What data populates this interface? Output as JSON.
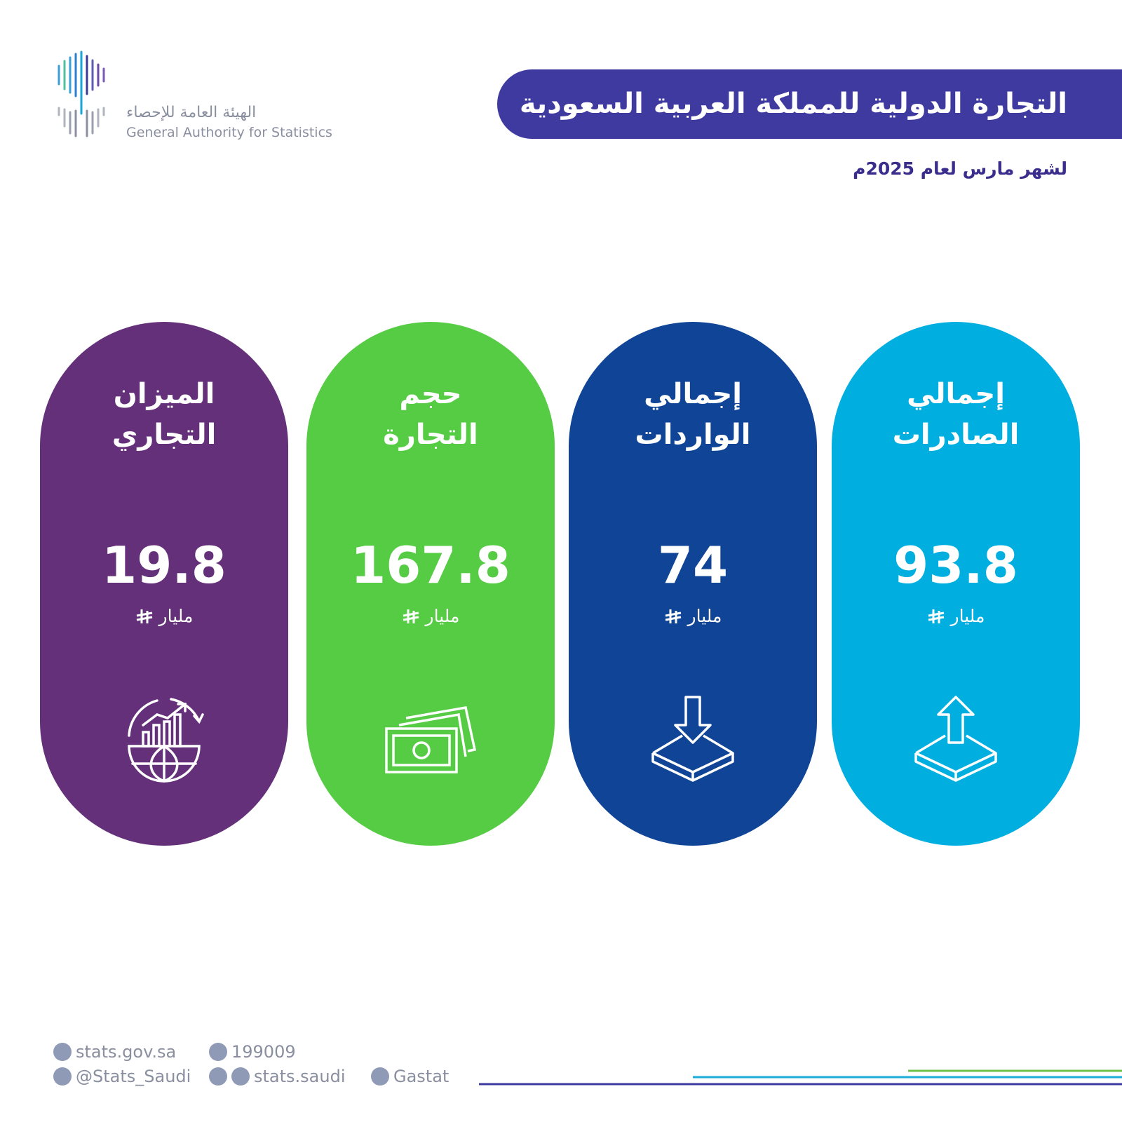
{
  "header": {
    "logo_arabic": "الهيئة العامة للإحصاء",
    "logo_english": "General Authority for Statistics",
    "title": "التجارة الدولية للمملكة العربية السعودية",
    "subtitle": "لشهر مارس لعام 2025م"
  },
  "cards": [
    {
      "title_lines": [
        "الميزان",
        "التجاري"
      ],
      "value": 19.8,
      "unit": "مليار"
    },
    {
      "title_lines": [
        "حجم",
        "التجارة"
      ],
      "value": 167.8,
      "unit": "مليار"
    },
    {
      "title_lines": [
        "إجمالي",
        "الواردات"
      ],
      "value": 74,
      "unit": "مليار"
    },
    {
      "title_lines": [
        "إجمالي",
        "الصادرات"
      ],
      "value": 93.8,
      "unit": "مليار"
    }
  ],
  "footer": {
    "website": "stats.gov.sa",
    "phone": "199009",
    "x_handle": "@Stats_Saudi",
    "social": "stats.saudi",
    "linkedin": "Gastat"
  }
}
